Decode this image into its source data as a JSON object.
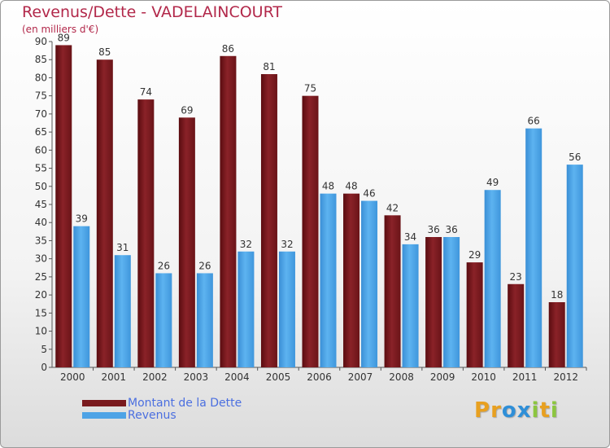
{
  "header": {
    "title": "Revenus/Dette - VADELAINCOURT",
    "subtitle": "(en milliers d'€)"
  },
  "colors": {
    "dette": "#7a1a1e",
    "revenus": "#4ea3e6",
    "title": "#b2284a",
    "legend_text": "#4b6fe0"
  },
  "legend": {
    "items": [
      {
        "label": "Montant de la Dette",
        "color": "#7a1a1e"
      },
      {
        "label": "Revenus",
        "color": "#4ea3e6"
      }
    ]
  },
  "logo": {
    "letters": [
      "P",
      "r",
      "o",
      "x",
      "i",
      "t",
      "i"
    ],
    "colors": [
      "#e8a020",
      "#e8a020",
      "#2f8fd8",
      "#2f8fd8",
      "#8cc63f",
      "#e8a020",
      "#8cc63f"
    ]
  },
  "chart_data": {
    "type": "bar",
    "title": "Revenus/Dette - VADELAINCOURT",
    "subtitle": "(en milliers d'€)",
    "categories": [
      "2000",
      "2001",
      "2002",
      "2003",
      "2004",
      "2005",
      "2006",
      "2007",
      "2008",
      "2009",
      "2010",
      "2011",
      "2012"
    ],
    "series": [
      {
        "name": "Montant de la Dette",
        "values": [
          89,
          85,
          74,
          69,
          86,
          81,
          75,
          48,
          42,
          36,
          29,
          23,
          18
        ]
      },
      {
        "name": "Revenus",
        "values": [
          39,
          31,
          26,
          26,
          32,
          32,
          48,
          46,
          34,
          36,
          49,
          66,
          56
        ]
      }
    ],
    "ylim": [
      0,
      90
    ],
    "yticks": [
      0,
      5,
      10,
      15,
      20,
      25,
      30,
      35,
      40,
      45,
      50,
      55,
      60,
      65,
      70,
      75,
      80,
      85,
      90
    ],
    "grid": false,
    "legend_position": "bottom-left",
    "data_labels": true
  }
}
